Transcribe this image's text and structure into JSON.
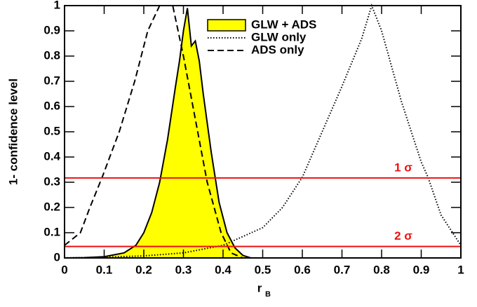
{
  "chart_data": {
    "type": "line",
    "xlabel": "r",
    "xlabel_subscript": "B",
    "ylabel": "1- confidence level",
    "xlim": [
      0,
      1
    ],
    "ylim": [
      0,
      1
    ],
    "xticks": [
      0,
      0.1,
      0.2,
      0.3,
      0.4,
      0.5,
      0.6,
      0.7,
      0.8,
      0.9,
      1
    ],
    "yticks": [
      0,
      0.1,
      0.2,
      0.3,
      0.4,
      0.5,
      0.6,
      0.7,
      0.8,
      0.9,
      1
    ],
    "series": [
      {
        "name": "GLW + ADS",
        "color": "#000000",
        "fill": "#ffff00",
        "style": "solid",
        "x": [
          0,
          0.05,
          0.1,
          0.15,
          0.18,
          0.2,
          0.22,
          0.24,
          0.26,
          0.28,
          0.29,
          0.3,
          0.31,
          0.32,
          0.33,
          0.34,
          0.35,
          0.37,
          0.39,
          0.41,
          0.43,
          0.45,
          0.47,
          0.5
        ],
        "values": [
          0,
          0.001,
          0.005,
          0.02,
          0.05,
          0.1,
          0.18,
          0.3,
          0.47,
          0.68,
          0.78,
          0.9,
          0.99,
          0.84,
          0.86,
          0.78,
          0.65,
          0.42,
          0.22,
          0.1,
          0.04,
          0.01,
          0,
          0
        ]
      },
      {
        "name": "GLW only",
        "color": "#000000",
        "style": "dotted",
        "x": [
          0,
          0.1,
          0.2,
          0.3,
          0.4,
          0.5,
          0.55,
          0.6,
          0.65,
          0.7,
          0.75,
          0.775,
          0.8,
          0.85,
          0.9,
          0.917,
          0.95,
          1
        ],
        "values": [
          0,
          0.003,
          0.008,
          0.02,
          0.05,
          0.12,
          0.2,
          0.32,
          0.5,
          0.68,
          0.87,
          1,
          0.9,
          0.62,
          0.38,
          0.32,
          0.17,
          0.05
        ]
      },
      {
        "name": "ADS only",
        "color": "#000000",
        "style": "dashed",
        "x": [
          0,
          0.04,
          0.064,
          0.095,
          0.138,
          0.177,
          0.21,
          0.24,
          0.273,
          0.3,
          0.336,
          0.36,
          0.395,
          0.42,
          0.45
        ],
        "values": [
          0.05,
          0.1,
          0.2,
          0.32,
          0.5,
          0.7,
          0.9,
          1,
          1,
          0.8,
          0.5,
          0.3,
          0.1,
          0.02,
          0
        ]
      }
    ],
    "hlines": [
      {
        "value": 0.317,
        "label": "1 σ",
        "color": "#ee1111"
      },
      {
        "value": 0.0455,
        "label": "2 σ",
        "color": "#ee1111"
      }
    ]
  }
}
